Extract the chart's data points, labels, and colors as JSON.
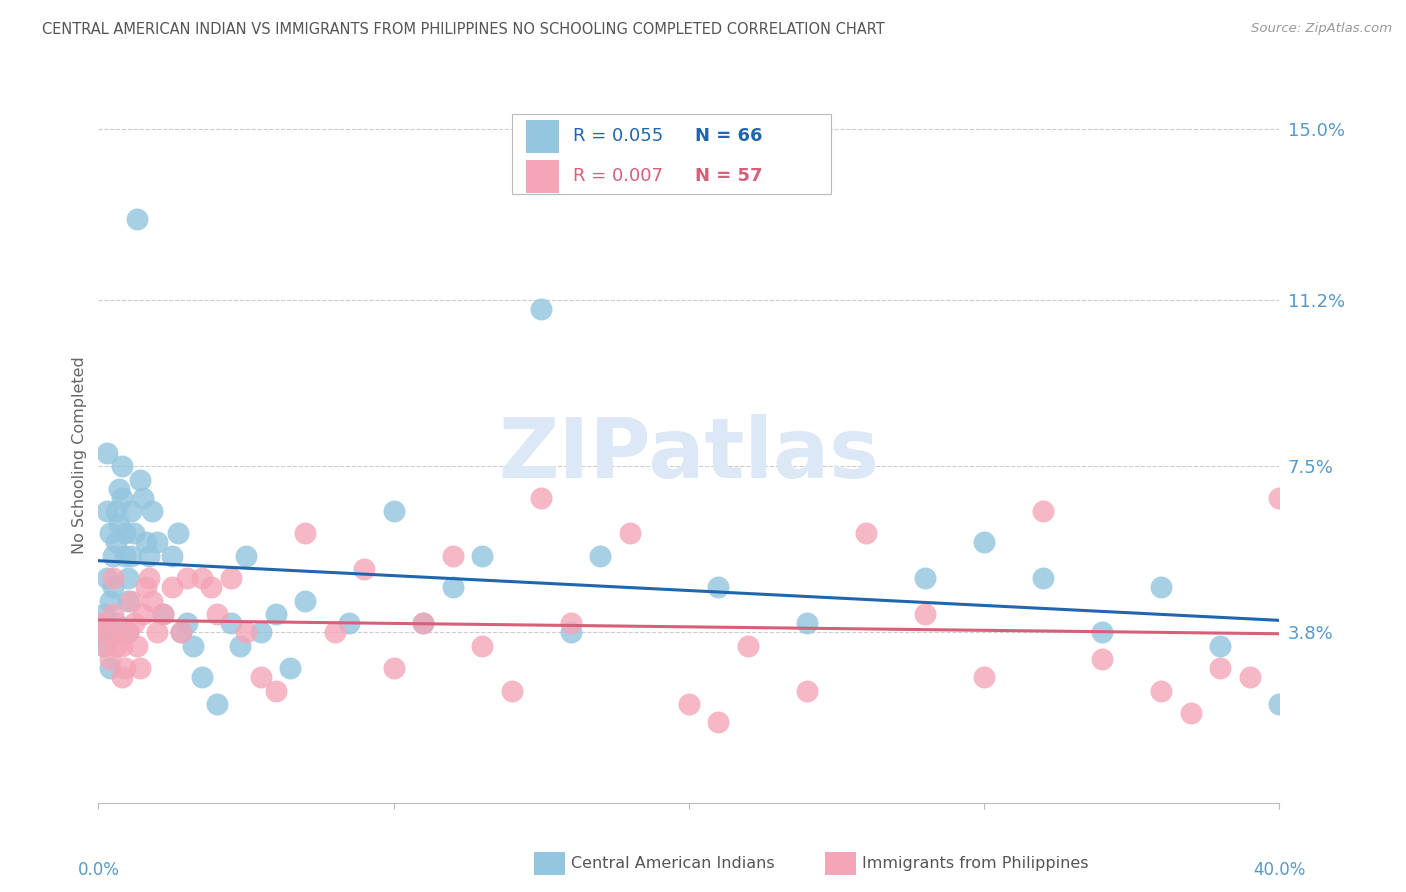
{
  "title": "CENTRAL AMERICAN INDIAN VS IMMIGRANTS FROM PHILIPPINES NO SCHOOLING COMPLETED CORRELATION CHART",
  "source": "Source: ZipAtlas.com",
  "ylabel": "No Schooling Completed",
  "xlim": [
    0.0,
    0.4
  ],
  "ylim": [
    0.0,
    0.155
  ],
  "ytick_vals": [
    0.038,
    0.075,
    0.112,
    0.15
  ],
  "ytick_labels": [
    "3.8%",
    "7.5%",
    "11.2%",
    "15.0%"
  ],
  "xtick_vals": [
    0.0,
    0.1,
    0.2,
    0.3,
    0.4
  ],
  "legend_r1": "R = 0.055",
  "legend_n1": "N = 66",
  "legend_r2": "R = 0.007",
  "legend_n2": "N = 57",
  "blue_color": "#92c5de",
  "pink_color": "#f4a5b8",
  "blue_line_color": "#2166ac",
  "pink_line_color": "#d6607a",
  "axis_label_color": "#5599cc",
  "watermark_color": "#dce8f5",
  "blue_dots_x": [
    0.001,
    0.002,
    0.002,
    0.003,
    0.003,
    0.003,
    0.004,
    0.004,
    0.004,
    0.005,
    0.005,
    0.005,
    0.006,
    0.006,
    0.006,
    0.007,
    0.007,
    0.008,
    0.008,
    0.009,
    0.009,
    0.01,
    0.01,
    0.01,
    0.011,
    0.011,
    0.012,
    0.013,
    0.014,
    0.015,
    0.016,
    0.017,
    0.018,
    0.02,
    0.022,
    0.025,
    0.027,
    0.028,
    0.03,
    0.032,
    0.035,
    0.04,
    0.045,
    0.048,
    0.05,
    0.055,
    0.06,
    0.065,
    0.07,
    0.085,
    0.1,
    0.11,
    0.12,
    0.13,
    0.15,
    0.16,
    0.17,
    0.21,
    0.24,
    0.28,
    0.3,
    0.32,
    0.34,
    0.36,
    0.38,
    0.4
  ],
  "blue_dots_y": [
    0.038,
    0.035,
    0.042,
    0.05,
    0.065,
    0.078,
    0.06,
    0.045,
    0.03,
    0.055,
    0.048,
    0.038,
    0.065,
    0.058,
    0.04,
    0.07,
    0.062,
    0.075,
    0.068,
    0.06,
    0.055,
    0.05,
    0.045,
    0.038,
    0.065,
    0.055,
    0.06,
    0.13,
    0.072,
    0.068,
    0.058,
    0.055,
    0.065,
    0.058,
    0.042,
    0.055,
    0.06,
    0.038,
    0.04,
    0.035,
    0.028,
    0.022,
    0.04,
    0.035,
    0.055,
    0.038,
    0.042,
    0.03,
    0.045,
    0.04,
    0.065,
    0.04,
    0.048,
    0.055,
    0.11,
    0.038,
    0.055,
    0.048,
    0.04,
    0.05,
    0.058,
    0.05,
    0.038,
    0.048,
    0.035,
    0.022
  ],
  "pink_dots_x": [
    0.001,
    0.002,
    0.003,
    0.004,
    0.005,
    0.005,
    0.006,
    0.007,
    0.008,
    0.008,
    0.009,
    0.01,
    0.011,
    0.012,
    0.013,
    0.014,
    0.015,
    0.016,
    0.017,
    0.018,
    0.02,
    0.022,
    0.025,
    0.028,
    0.03,
    0.035,
    0.038,
    0.04,
    0.045,
    0.05,
    0.055,
    0.06,
    0.07,
    0.08,
    0.09,
    0.1,
    0.11,
    0.12,
    0.13,
    0.14,
    0.15,
    0.16,
    0.18,
    0.2,
    0.21,
    0.22,
    0.24,
    0.26,
    0.28,
    0.3,
    0.32,
    0.34,
    0.36,
    0.37,
    0.38,
    0.39,
    0.4
  ],
  "pink_dots_y": [
    0.04,
    0.035,
    0.038,
    0.032,
    0.05,
    0.042,
    0.035,
    0.038,
    0.028,
    0.035,
    0.03,
    0.038,
    0.045,
    0.04,
    0.035,
    0.03,
    0.042,
    0.048,
    0.05,
    0.045,
    0.038,
    0.042,
    0.048,
    0.038,
    0.05,
    0.05,
    0.048,
    0.042,
    0.05,
    0.038,
    0.028,
    0.025,
    0.06,
    0.038,
    0.052,
    0.03,
    0.04,
    0.055,
    0.035,
    0.025,
    0.068,
    0.04,
    0.06,
    0.022,
    0.018,
    0.035,
    0.025,
    0.06,
    0.042,
    0.028,
    0.065,
    0.032,
    0.025,
    0.02,
    0.03,
    0.028,
    0.068
  ]
}
